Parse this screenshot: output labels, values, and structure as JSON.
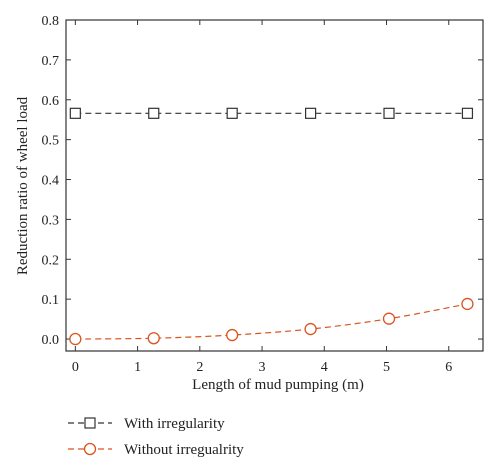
{
  "chart_data": {
    "type": "line",
    "xlabel": "Length of mud pumping (m)",
    "ylabel": "Reduction ratio of wheel load",
    "xlim": [
      -0.15,
      6.55
    ],
    "ylim": [
      -0.03,
      0.8
    ],
    "xticks": [
      0,
      1,
      2,
      3,
      4,
      5,
      6
    ],
    "xtick_labels": [
      "0",
      "1",
      "2",
      "3",
      "4",
      "5",
      "6"
    ],
    "yticks": [
      0.0,
      0.1,
      0.2,
      0.3,
      0.4,
      0.5,
      0.6,
      0.7,
      0.8
    ],
    "ytick_labels": [
      "0.0",
      "0.1",
      "0.2",
      "0.3",
      "0.4",
      "0.5",
      "0.6",
      "0.7",
      "0.8"
    ],
    "grid": false,
    "legend_position": "bottom",
    "series": [
      {
        "name": "With irregularity",
        "color": "#333333",
        "marker": "square",
        "line_style": "dashed",
        "x": [
          0,
          1.26,
          2.52,
          3.78,
          5.04,
          6.3
        ],
        "y": [
          0.566,
          0.566,
          0.566,
          0.566,
          0.566,
          0.566
        ]
      },
      {
        "name": "Without irregualrity",
        "color": "#d9541e",
        "marker": "circle",
        "line_style": "dashed",
        "x": [
          0,
          1.26,
          2.52,
          3.78,
          5.04,
          6.3
        ],
        "y": [
          0.0,
          0.002,
          0.01,
          0.025,
          0.051,
          0.088
        ]
      }
    ]
  }
}
